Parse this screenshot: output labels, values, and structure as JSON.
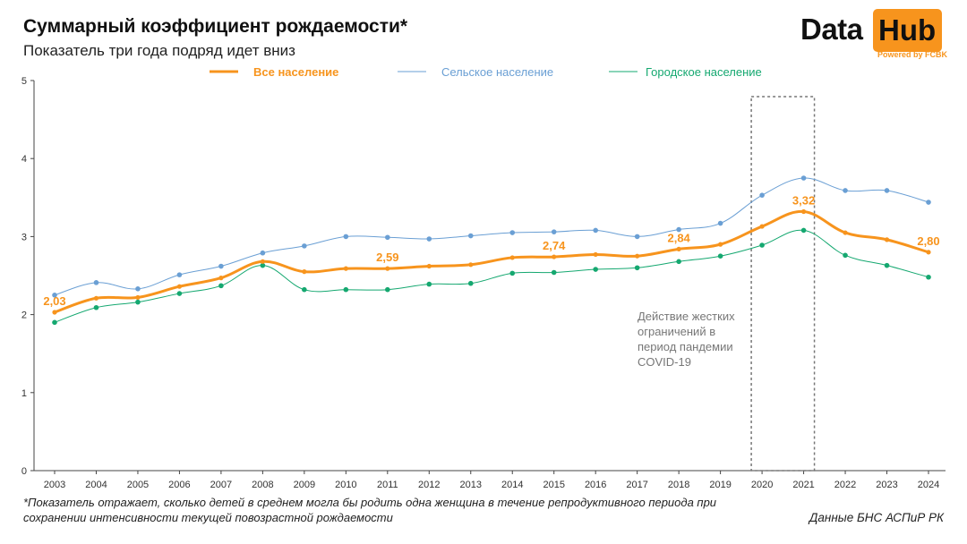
{
  "header": {
    "title": "Суммарный коэффициент рождаемости*",
    "subtitle": "Показатель три года подряд идет вниз"
  },
  "logo": {
    "data_text": "Data",
    "hub_text": "Hub",
    "powered_text": "Powered by FCBK"
  },
  "annotation": {
    "covid_text": "Действие жестких ограничений в период пандемии COVID-19"
  },
  "footer": {
    "footnote": "*Показатель отражает, сколько детей в среднем могла бы родить одна женщина в течение репродуктивного периода при сохранении интенсивности текущей повозрастной рождаемости",
    "source": "Данные БНС АСПиР РК"
  },
  "colors": {
    "all": "#f7941d",
    "rural": "#6a9fd4",
    "urban": "#15a870",
    "axis": "#444444",
    "box": "#777777"
  },
  "chart_data": {
    "type": "line",
    "title": "Суммарный коэффициент рождаемости*",
    "xlabel": "",
    "ylabel": "",
    "ylim": [
      0,
      5
    ],
    "yticks": [
      0,
      1,
      2,
      3,
      4,
      5
    ],
    "x": [
      2003,
      2004,
      2005,
      2006,
      2007,
      2008,
      2009,
      2010,
      2011,
      2012,
      2013,
      2014,
      2015,
      2016,
      2017,
      2018,
      2019,
      2020,
      2021,
      2022,
      2023,
      2024
    ],
    "series": [
      {
        "key": "all",
        "name": "Все население",
        "values": [
          2.03,
          2.21,
          2.22,
          2.36,
          2.47,
          2.68,
          2.55,
          2.59,
          2.59,
          2.62,
          2.64,
          2.73,
          2.74,
          2.77,
          2.75,
          2.84,
          2.9,
          3.13,
          3.32,
          3.05,
          2.96,
          2.8
        ]
      },
      {
        "key": "rural",
        "name": "Сельское население",
        "values": [
          2.25,
          2.41,
          2.33,
          2.51,
          2.62,
          2.79,
          2.88,
          3.0,
          2.99,
          2.97,
          3.01,
          3.05,
          3.06,
          3.08,
          3.0,
          3.09,
          3.17,
          3.53,
          3.75,
          3.59,
          3.59,
          3.44
        ]
      },
      {
        "key": "urban",
        "name": "Городское население",
        "values": [
          1.9,
          2.09,
          2.16,
          2.27,
          2.37,
          2.63,
          2.32,
          2.32,
          2.32,
          2.39,
          2.4,
          2.53,
          2.54,
          2.58,
          2.6,
          2.68,
          2.75,
          2.89,
          3.08,
          2.76,
          2.63,
          2.48
        ]
      }
    ],
    "data_labels": [
      {
        "year": 2003,
        "text": "2,03"
      },
      {
        "year": 2011,
        "text": "2,59"
      },
      {
        "year": 2015,
        "text": "2,74"
      },
      {
        "year": 2018,
        "text": "2,84"
      },
      {
        "year": 2021,
        "text": "3,32"
      },
      {
        "year": 2024,
        "text": "2,80"
      }
    ],
    "highlight_range": [
      2020,
      2021
    ]
  }
}
